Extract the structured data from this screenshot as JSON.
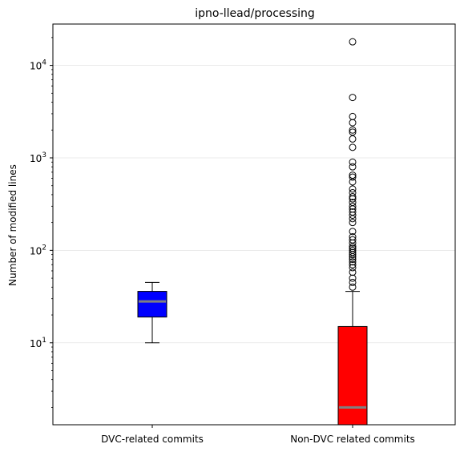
{
  "chart_data": {
    "type": "box",
    "title": "ipno-llead/processing",
    "xlabel": "",
    "ylabel": "Number of modified lines",
    "y_scale": "log",
    "ylim": [
      1.3,
      28000
    ],
    "grid": "horizontal major gridlines",
    "y_ticks": [
      {
        "value": 10,
        "base": "10",
        "exp": "1"
      },
      {
        "value": 100,
        "base": "10",
        "exp": "2"
      },
      {
        "value": 1000,
        "base": "10",
        "exp": "3"
      },
      {
        "value": 10000,
        "base": "10",
        "exp": "4"
      }
    ],
    "categories": [
      "DVC-related commits",
      "Non-DVC related commits"
    ],
    "boxes": [
      {
        "category": "DVC-related commits",
        "color": "#0000ff",
        "median_color": "#808080",
        "whisker_low": 10,
        "q1": 19,
        "median": 28,
        "q3": 36,
        "whisker_high": 45,
        "outliers": []
      },
      {
        "category": "Non-DVC related commits",
        "color": "#ff0000",
        "median_color": "#808080",
        "whisker_low": 1,
        "q1": 1,
        "median": 2,
        "q3": 15,
        "whisker_high": 36,
        "outliers": [
          40,
          45,
          50,
          58,
          65,
          70,
          75,
          80,
          85,
          90,
          95,
          100,
          105,
          110,
          120,
          130,
          140,
          160,
          200,
          220,
          240,
          260,
          280,
          300,
          330,
          360,
          380,
          420,
          460,
          550,
          620,
          650,
          800,
          900,
          1300,
          1600,
          1900,
          2000,
          2400,
          2800,
          4500,
          18000
        ]
      }
    ]
  }
}
